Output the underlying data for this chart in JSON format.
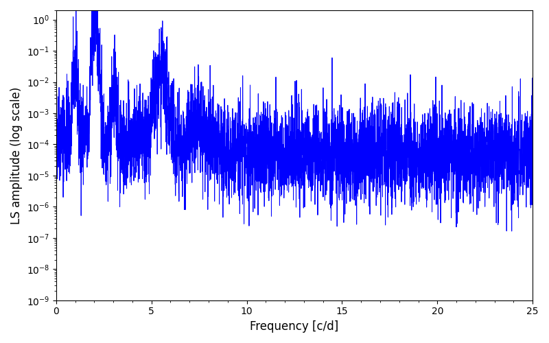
{
  "title": "",
  "xlabel": "Frequency [c/d]",
  "ylabel": "LS amplitude (log scale)",
  "line_color": "#0000ff",
  "line_width": 0.7,
  "xlim": [
    0,
    25
  ],
  "ymin": 1e-09,
  "ymax": 2.0,
  "background_color": "#ffffff",
  "freq_min": 0.0,
  "freq_max": 25.0,
  "n_points": 5000,
  "seed": 42,
  "figsize": [
    8.0,
    5.0
  ],
  "dpi": 100,
  "tick_fontsize": 10,
  "label_fontsize": 12
}
